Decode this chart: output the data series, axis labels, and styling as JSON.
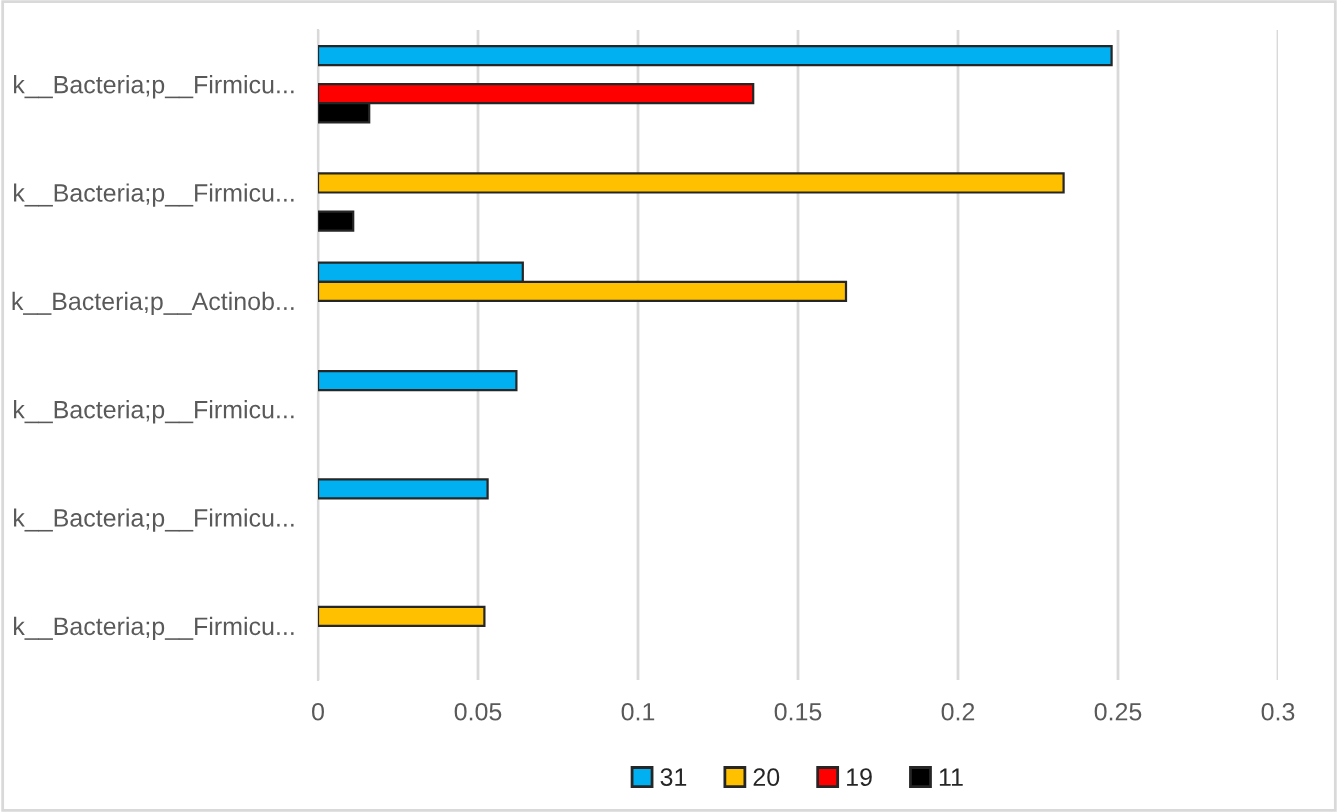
{
  "chart_data": {
    "type": "bar",
    "orientation": "horizontal",
    "categories": [
      "k__Bacteria;p__Firmicu...",
      "k__Bacteria;p__Firmicu...",
      "k__Bacteria;p__Actinob...",
      "k__Bacteria;p__Firmicu...",
      "k__Bacteria;p__Firmicu...",
      "k__Bacteria;p__Firmicu..."
    ],
    "series": [
      {
        "name": "31",
        "color": "#00b0f0",
        "values": [
          0.248,
          null,
          0.064,
          0.062,
          0.053,
          null
        ]
      },
      {
        "name": "20",
        "color": "#ffc000",
        "values": [
          null,
          0.233,
          0.165,
          null,
          null,
          0.052
        ]
      },
      {
        "name": "19",
        "color": "#ff0000",
        "values": [
          0.136,
          null,
          null,
          null,
          null,
          null
        ]
      },
      {
        "name": "11",
        "color": "#000000",
        "values": [
          0.016,
          0.011,
          null,
          null,
          null,
          null
        ]
      }
    ],
    "xlim": [
      0,
      0.3
    ],
    "xticks": [
      0,
      0.05,
      0.1,
      0.15,
      0.2,
      0.25,
      0.3
    ],
    "grid": "x",
    "legend": "bottom"
  }
}
